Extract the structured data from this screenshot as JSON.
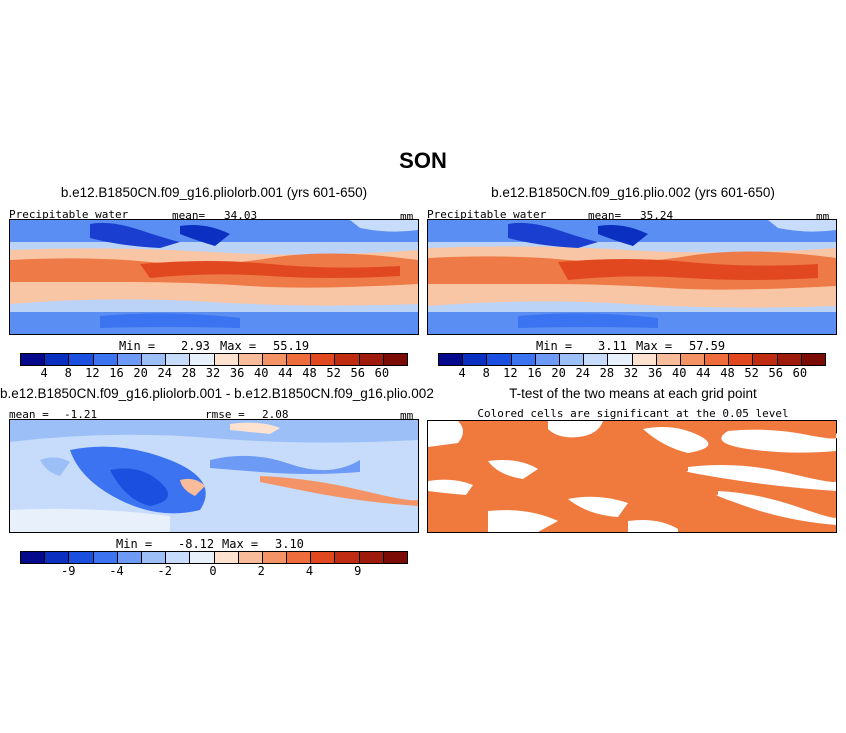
{
  "figure": {
    "title": "SON"
  },
  "chart_data": [
    {
      "type": "heatmap",
      "title": "b.e12.B1850CN.f09_g16.pliolorb.001 (yrs 601-650)",
      "variable": "Precipitable water",
      "units": "mm",
      "mean_label": "mean=",
      "mean": "34.03",
      "min_label": "Min =",
      "min": "2.93",
      "max_label": "Max =",
      "max": "55.19",
      "colorbar_ticks": [
        "4",
        "8",
        "12",
        "16",
        "20",
        "24",
        "28",
        "32",
        "36",
        "40",
        "44",
        "48",
        "52",
        "56",
        "60"
      ],
      "colorbar_colors": [
        "#050a8c",
        "#0b2fc0",
        "#1a4fe0",
        "#3b73f0",
        "#6c9af5",
        "#9dbff8",
        "#c7dcfa",
        "#e8f0fc",
        "#fde2cf",
        "#f9bc9a",
        "#f49466",
        "#ef6d3c",
        "#e2481f",
        "#c02c12",
        "#9e1b0b",
        "#7a0c05"
      ]
    },
    {
      "type": "heatmap",
      "title": "b.e12.B1850CN.f09_g16.plio.002 (yrs 601-650)",
      "variable": "Precipitable water",
      "units": "mm",
      "mean_label": "mean=",
      "mean": "35.24",
      "min_label": "Min =",
      "min": "3.11",
      "max_label": "Max =",
      "max": "57.59",
      "colorbar_ticks": [
        "4",
        "8",
        "12",
        "16",
        "20",
        "24",
        "28",
        "32",
        "36",
        "40",
        "44",
        "48",
        "52",
        "56",
        "60"
      ],
      "colorbar_colors": [
        "#050a8c",
        "#0b2fc0",
        "#1a4fe0",
        "#3b73f0",
        "#6c9af5",
        "#9dbff8",
        "#c7dcfa",
        "#e8f0fc",
        "#fde2cf",
        "#f9bc9a",
        "#f49466",
        "#ef6d3c",
        "#e2481f",
        "#c02c12",
        "#9e1b0b",
        "#7a0c05"
      ]
    },
    {
      "type": "heatmap",
      "title": "b.e12.B1850CN.f09_g16.pliolorb.001 - b.e12.B1850CN.f09_g16.plio.002",
      "units": "mm",
      "mean_label": "mean =",
      "mean": "-1.21",
      "rmse_label": "rmse =",
      "rmse": "2.08",
      "min_label": "Min =",
      "min": "-8.12",
      "max_label": "Max =",
      "max": "3.10",
      "colorbar_ticks": [
        "-9",
        "-4",
        "-2",
        "0",
        "2",
        "4",
        "9"
      ],
      "colorbar_colors": [
        "#050a8c",
        "#0b2fc0",
        "#1a4fe0",
        "#3b73f0",
        "#6c9af5",
        "#9dbff8",
        "#c7dcfa",
        "#e8f0fc",
        "#fde2cf",
        "#f9bc9a",
        "#f49466",
        "#ef6d3c",
        "#e2481f",
        "#c02c12",
        "#9e1b0b",
        "#7a0c05"
      ]
    },
    {
      "type": "heatmap",
      "title": "T-test of the two means at each grid point",
      "subtitle": "Colored cells are significant at the 0.05 level",
      "significance_color": "#f07a3e"
    }
  ]
}
